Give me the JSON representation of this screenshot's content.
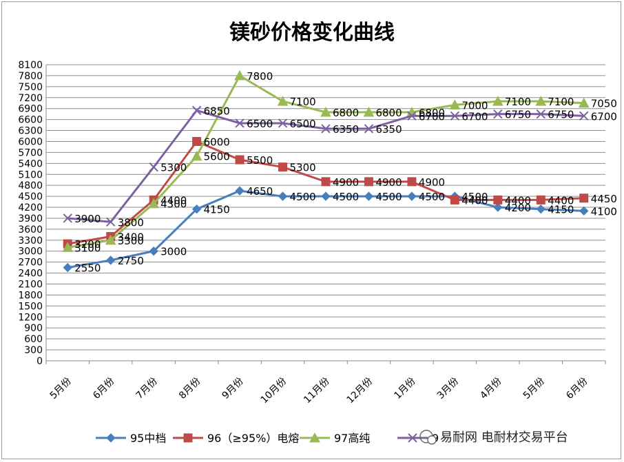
{
  "chart_data": {
    "type": "line",
    "title": "镁砂价格变化曲线",
    "categories": [
      "5月份",
      "6月份",
      "7月份",
      "8月份",
      "9月份",
      "10月份",
      "11月份",
      "12月份",
      "1月份",
      "3月份",
      "4月份",
      "5月份",
      "6月份"
    ],
    "yticks": [
      0,
      300,
      600,
      900,
      1200,
      1500,
      1800,
      2100,
      2400,
      2700,
      3000,
      3300,
      3600,
      3900,
      4200,
      4500,
      4800,
      5100,
      5400,
      5700,
      6000,
      6300,
      6600,
      6900,
      7200,
      7500,
      7800,
      8100
    ],
    "ylim": [
      0,
      8100
    ],
    "grid": true,
    "legend_position": "bottom",
    "series": [
      {
        "name": "95中档",
        "color": "#4a7ebb",
        "marker": "diamond",
        "values": [
          2550,
          2750,
          3000,
          4150,
          4650,
          4500,
          4500,
          4500,
          4500,
          4500,
          4200,
          4150,
          4100
        ]
      },
      {
        "name": "96（≥95%）电熔",
        "color": "#be4b48",
        "marker": "square",
        "values": [
          3200,
          3400,
          4400,
          6000,
          5500,
          5300,
          4900,
          4900,
          4900,
          4400,
          4400,
          4400,
          4450
        ]
      },
      {
        "name": "97高纯",
        "color": "#98b954",
        "marker": "triangle",
        "values": [
          3100,
          3300,
          4300,
          5600,
          7800,
          7100,
          6800,
          6800,
          6800,
          7000,
          7100,
          7100,
          7050
        ]
      },
      {
        "name": "9",
        "color": "#7d60a0",
        "marker": "x",
        "values": [
          3900,
          3800,
          5300,
          6850,
          6500,
          6500,
          6350,
          6350,
          6700,
          6700,
          6750,
          6750,
          6700
        ]
      }
    ]
  },
  "watermark": "易耐网 电耐材交易平台"
}
